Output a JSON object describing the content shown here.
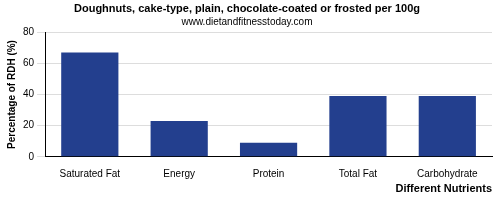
{
  "chart_data": {
    "type": "bar",
    "title": "Doughnuts, cake-type, plain, chocolate-coated or frosted per 100g",
    "subtitle": "www.dietandfitnesstoday.com",
    "x_label": "Different Nutrients",
    "y_label": "Percentage of RDH (%)",
    "categories": [
      "Saturated Fat",
      "Energy",
      "Protein",
      "Total Fat",
      "Carbohydrate"
    ],
    "values": [
      67,
      23,
      9,
      39,
      39
    ],
    "color": "#233f8e",
    "ylim": [
      0,
      80
    ],
    "yticks": [
      0,
      20,
      40,
      60,
      80
    ],
    "grid": true
  }
}
